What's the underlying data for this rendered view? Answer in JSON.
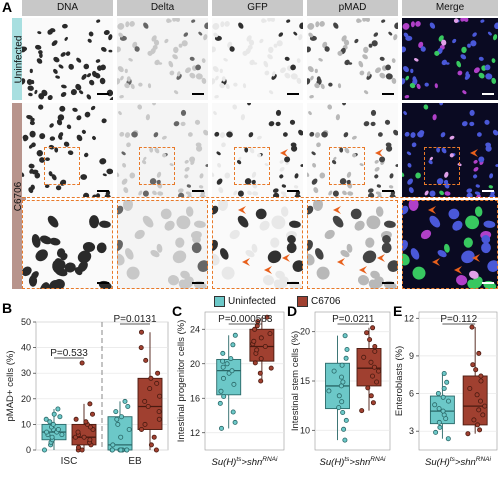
{
  "panel_a": {
    "letter": "A",
    "columns": [
      "DNA",
      "Delta",
      "GFP",
      "pMAD",
      "Merge"
    ],
    "rows": [
      "Uninfected",
      "C6706"
    ],
    "colors": {
      "uninfected_label_bg": "#a8dfe0",
      "infected_label_bg": "#b8948c",
      "dashed_box": "#e87a2a",
      "arrowhead": "#e8601c"
    }
  },
  "legend": {
    "items": [
      {
        "label": "Uninfected",
        "color": "#6cc8c8"
      },
      {
        "label": "C6706",
        "color": "#a04030"
      }
    ]
  },
  "charts": {
    "B": {
      "letter": "B",
      "ylabel": "pMAD+ cells (%)",
      "groups": [
        "ISC",
        "EB"
      ],
      "p_values": [
        "P=0.533",
        "P=0.0131"
      ]
    },
    "C": {
      "letter": "C",
      "ylabel": "Intestinal progenitor cells (%)",
      "xlabel_base": "Su(H)",
      "xlabel_sup1": "ts",
      "xlabel_mid": ">shn",
      "xlabel_sup2": "RNAi",
      "p_value": "P=0.000583"
    },
    "D": {
      "letter": "D",
      "ylabel": "Intestinal stem cells (%)",
      "xlabel_base": "Su(H)",
      "xlabel_sup1": "ts",
      "xlabel_mid": ">shn",
      "xlabel_sup2": "RNAi",
      "p_value": "P=0.0211"
    },
    "E": {
      "letter": "E",
      "ylabel": "Enteroblasts (%)",
      "xlabel_base": "Su(H)",
      "xlabel_sup1": "ts",
      "xlabel_mid": ">shn",
      "xlabel_sup2": "RNAi",
      "p_value": "P=0.112"
    }
  },
  "chart_data": [
    {
      "type": "box",
      "panel": "B",
      "ylabel": "pMAD+ cells (%)",
      "categories": [
        "ISC",
        "EB"
      ],
      "ylim": [
        0,
        50
      ],
      "yticks": [
        0,
        10,
        20,
        30,
        40,
        50
      ],
      "series": [
        {
          "name": "Uninfected",
          "groups": [
            {
              "category": "ISC",
              "q1": 4,
              "median": 7,
              "q3": 10,
              "whisker_low": 0,
              "whisker_high": 16,
              "points": [
                0,
                2,
                3,
                4,
                5,
                6,
                6,
                7,
                7,
                8,
                8,
                9,
                10,
                11,
                12,
                13,
                14,
                16
              ]
            },
            {
              "category": "EB",
              "q1": 0,
              "median": 2,
              "q3": 13,
              "whisker_low": 0,
              "whisker_high": 19,
              "points": [
                0,
                0,
                0,
                0,
                0,
                0,
                0,
                0,
                2,
                5,
                8,
                10,
                12,
                13,
                15,
                17,
                19
              ]
            }
          ]
        },
        {
          "name": "C6706",
          "groups": [
            {
              "category": "ISC",
              "q1": 2,
              "median": 5,
              "q3": 10,
              "whisker_low": 0,
              "whisker_high": 18,
              "points": [
                0,
                0,
                1,
                2,
                3,
                4,
                5,
                5,
                6,
                7,
                8,
                9,
                10,
                11,
                12,
                14,
                18,
                34
              ]
            },
            {
              "category": "EB",
              "q1": 8,
              "median": 17,
              "q3": 28,
              "whisker_low": 0,
              "whisker_high": 46,
              "points": [
                0,
                2,
                5,
                8,
                10,
                12,
                15,
                17,
                19,
                21,
                24,
                26,
                28,
                30,
                35,
                40,
                46
              ]
            }
          ]
        }
      ]
    },
    {
      "type": "box",
      "panel": "C",
      "ylabel": "Intestinal progenitor cells (%)",
      "ylim": [
        10,
        26
      ],
      "yticks": [
        12,
        16,
        20,
        24
      ],
      "series": [
        {
          "name": "Uninfected",
          "q1": 16.4,
          "median": 19.2,
          "q3": 20.5,
          "whisker_low": 12.5,
          "whisker_high": 23.3,
          "points": [
            12.5,
            13.2,
            14.4,
            15.4,
            16.2,
            16.8,
            17.6,
            18.3,
            18.9,
            19.2,
            19.6,
            20.0,
            20.3,
            20.6,
            21.2,
            22.2,
            23.3
          ]
        },
        {
          "name": "C6706",
          "q1": 20.3,
          "median": 22.0,
          "q3": 24.0,
          "whisker_low": 18.0,
          "whisker_high": 25.4,
          "points": [
            18.0,
            18.9,
            19.5,
            20.1,
            20.6,
            21.2,
            21.6,
            22.0,
            22.3,
            22.6,
            23.0,
            23.5,
            24.0,
            24.4,
            24.9,
            25.4
          ]
        }
      ]
    },
    {
      "type": "box",
      "panel": "D",
      "ylabel": "Intestinal stem cells (%)",
      "ylim": [
        8,
        22
      ],
      "yticks": [
        10,
        15,
        20
      ],
      "series": [
        {
          "name": "Uninfected",
          "q1": 12.2,
          "median": 14.5,
          "q3": 16.8,
          "whisker_low": 9.0,
          "whisker_high": 19.6,
          "points": [
            9.0,
            10.1,
            11.0,
            11.8,
            12.3,
            12.9,
            13.5,
            14.0,
            14.5,
            14.9,
            15.4,
            16.0,
            16.6,
            17.3,
            18.2,
            19.6
          ]
        },
        {
          "name": "C6706",
          "q1": 14.5,
          "median": 16.3,
          "q3": 18.3,
          "whisker_low": 12.0,
          "whisker_high": 20.4,
          "points": [
            12.0,
            12.8,
            13.5,
            14.3,
            14.9,
            15.5,
            16.0,
            16.4,
            16.9,
            17.4,
            18.0,
            18.5,
            19.2,
            19.9,
            20.4
          ]
        }
      ]
    },
    {
      "type": "box",
      "panel": "E",
      "ylabel": "Enteroblasts (%)",
      "ylim": [
        1.5,
        12.5
      ],
      "yticks": [
        3,
        6,
        9,
        12
      ],
      "series": [
        {
          "name": "Uninfected",
          "q1": 3.6,
          "median": 4.6,
          "q3": 5.8,
          "whisker_low": 2.4,
          "whisker_high": 7.6,
          "points": [
            2.4,
            2.9,
            3.3,
            3.7,
            4.0,
            4.3,
            4.6,
            4.8,
            5.1,
            5.4,
            5.7,
            6.0,
            6.4,
            6.9,
            7.6
          ]
        },
        {
          "name": "C6706",
          "q1": 3.5,
          "median": 5.0,
          "q3": 7.4,
          "whisker_low": 2.8,
          "whisker_high": 11.3,
          "points": [
            2.8,
            3.1,
            3.5,
            3.9,
            4.3,
            4.7,
            5.0,
            5.4,
            5.9,
            6.4,
            7.0,
            7.4,
            7.9,
            8.3,
            9.2,
            11.3
          ]
        }
      ]
    }
  ]
}
